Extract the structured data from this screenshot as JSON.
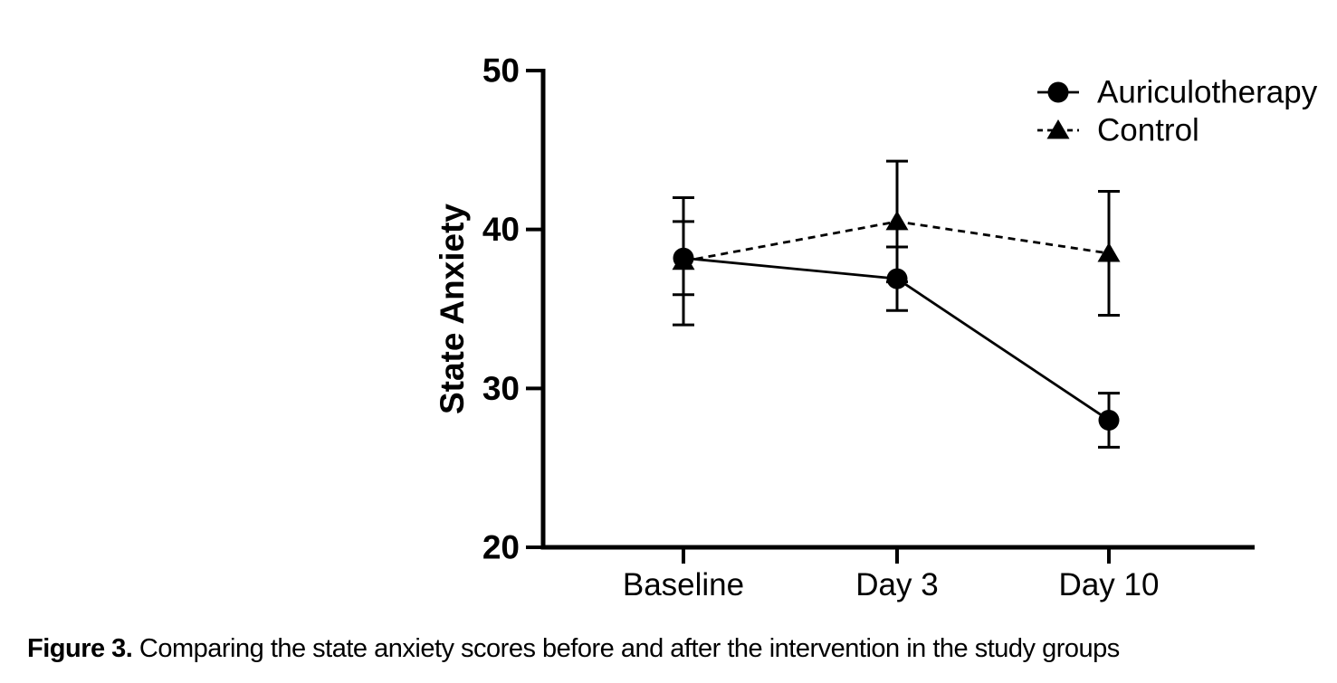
{
  "chart_data": {
    "type": "line",
    "title": "",
    "categories": [
      "Baseline",
      "Day 3",
      "Day 10"
    ],
    "series": [
      {
        "name": "Auriculotherapy",
        "marker": "circle",
        "line_style": "solid",
        "values": [
          38.2,
          36.9,
          28.0
        ],
        "errors": [
          2.3,
          2.0,
          1.7
        ]
      },
      {
        "name": "Control",
        "marker": "triangle",
        "line_style": "dashed",
        "values": [
          38.0,
          40.5,
          38.5
        ],
        "errors": [
          4.0,
          3.8,
          3.9
        ]
      }
    ],
    "xlabel": "",
    "ylabel": "State Anxiety",
    "ylim": [
      20,
      50
    ],
    "yticks": [
      50,
      40,
      30,
      20
    ],
    "legend_position": "top-right",
    "grid": false,
    "axis_color": "#000000",
    "marker_color": "#000000",
    "background_color": "#ffffff"
  },
  "caption": {
    "label": "Figure 3.",
    "text": " Comparing the state anxiety scores before and after the intervention in the study groups"
  }
}
